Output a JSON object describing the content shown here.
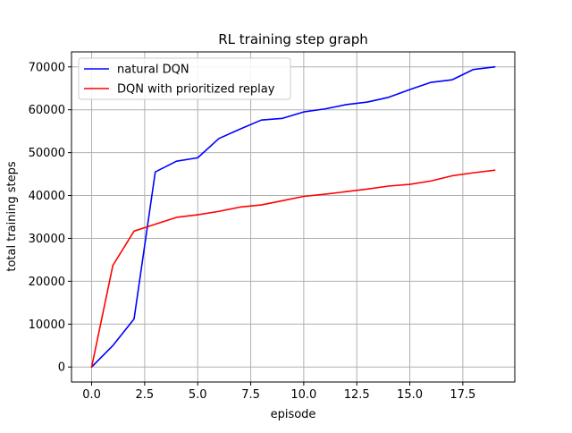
{
  "chart_data": {
    "type": "line",
    "title": "RL training step graph",
    "xlabel": "episode",
    "ylabel": "total training steps",
    "xlim": [
      -0.95,
      19.95
    ],
    "ylim": [
      -3500,
      73500
    ],
    "xticks": [
      0.0,
      2.5,
      5.0,
      7.5,
      10.0,
      12.5,
      15.0,
      17.5
    ],
    "xtick_labels": [
      "0.0",
      "2.5",
      "5.0",
      "7.5",
      "10.0",
      "12.5",
      "15.0",
      "17.5"
    ],
    "yticks": [
      0,
      10000,
      20000,
      30000,
      40000,
      50000,
      60000,
      70000
    ],
    "ytick_labels": [
      "0",
      "10000",
      "20000",
      "30000",
      "40000",
      "50000",
      "60000",
      "70000"
    ],
    "grid": true,
    "legend_position": "top-left",
    "x": [
      0,
      1,
      2,
      3,
      4,
      5,
      6,
      7,
      8,
      9,
      10,
      11,
      12,
      13,
      14,
      15,
      16,
      17,
      18,
      19
    ],
    "series": [
      {
        "name": "natural DQN",
        "color": "#0000ff",
        "values": [
          0,
          5000,
          11200,
          45500,
          48000,
          48800,
          53300,
          55500,
          57600,
          58000,
          59500,
          60200,
          61200,
          61800,
          62900,
          64700,
          66400,
          67000,
          69400,
          70000
        ]
      },
      {
        "name": "DQN with prioritized replay",
        "color": "#ff0000",
        "values": [
          0,
          23700,
          31700,
          33300,
          34900,
          35500,
          36300,
          37300,
          37800,
          38800,
          39800,
          40300,
          40900,
          41500,
          42200,
          42600,
          43400,
          44600,
          45300,
          45900
        ]
      }
    ]
  }
}
